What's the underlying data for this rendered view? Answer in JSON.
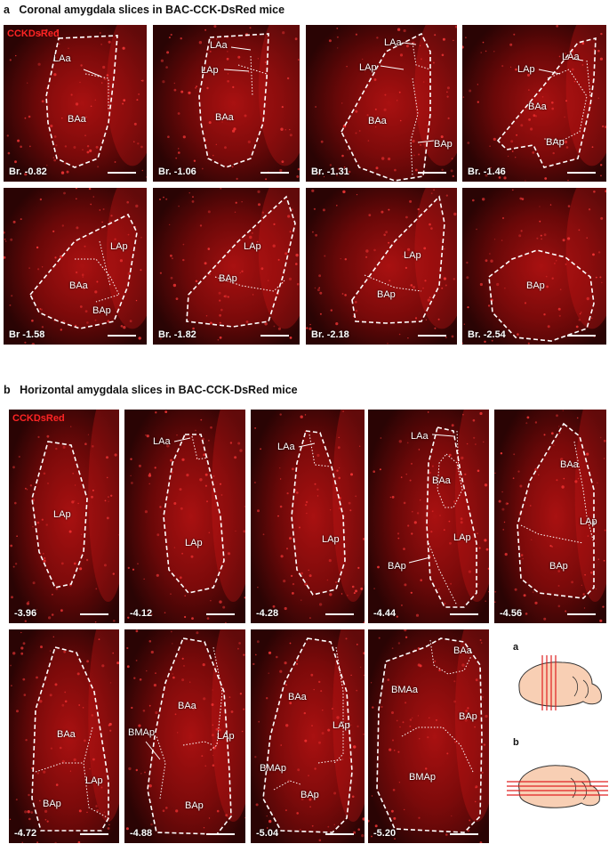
{
  "figure": {
    "section_a": {
      "letter": "a",
      "heading": "Coronal amygdala slices in BAC-CCK-DsRed mice",
      "marker": "CCKDsRed",
      "panels": [
        {
          "label": "Br. -0.82",
          "regions": [
            "LAa",
            "BAa"
          ]
        },
        {
          "label": "Br. -1.06",
          "regions": [
            "LAa",
            "LAp",
            "BAa"
          ]
        },
        {
          "label": "Br. -1.31",
          "regions": [
            "LAa",
            "LAp",
            "BAa",
            "BAp"
          ]
        },
        {
          "label": "Br. -1.46",
          "regions": [
            "LAa",
            "LAp",
            "BAa",
            "BAp"
          ]
        },
        {
          "label": "Br -1.58",
          "regions": [
            "LAp",
            "BAa",
            "BAp"
          ]
        },
        {
          "label": "Br. -1.82",
          "regions": [
            "LAp",
            "BAp"
          ]
        },
        {
          "label": "Br. -2.18",
          "regions": [
            "LAp",
            "BAp"
          ]
        },
        {
          "label": "Br. -2.54",
          "regions": [
            "BAp"
          ]
        }
      ]
    },
    "section_b": {
      "letter": "b",
      "heading": "Horizontal amygdala slices in BAC-CCK-DsRed mice",
      "marker": "CCKDsRed",
      "panels": [
        {
          "label": "-3.96",
          "regions": [
            "LAp"
          ]
        },
        {
          "label": "-4.12",
          "regions": [
            "LAa",
            "LAp"
          ]
        },
        {
          "label": "-4.28",
          "regions": [
            "LAa",
            "LAp"
          ]
        },
        {
          "label": "-4.44",
          "regions": [
            "LAa",
            "BAa",
            "LAp",
            "BAp"
          ]
        },
        {
          "label": "-4.56",
          "regions": [
            "BAa",
            "LAp",
            "BAp"
          ]
        },
        {
          "label": "-4.72",
          "regions": [
            "BAa",
            "LAp",
            "BAp"
          ]
        },
        {
          "label": "-4.88",
          "regions": [
            "BAa",
            "LAp",
            "BMAp",
            "BAp"
          ]
        },
        {
          "label": "-5.04",
          "regions": [
            "BAa",
            "LAp",
            "BMAp",
            "BAp"
          ]
        },
        {
          "label": "-5.20",
          "regions": [
            "BAa",
            "BMAa",
            "BAp",
            "BMAp"
          ]
        }
      ]
    },
    "schematics": {
      "a": "a",
      "b": "b"
    },
    "colors": {
      "signal": "#e01010",
      "background": "#2a0404",
      "outline": "#ffffff"
    }
  }
}
